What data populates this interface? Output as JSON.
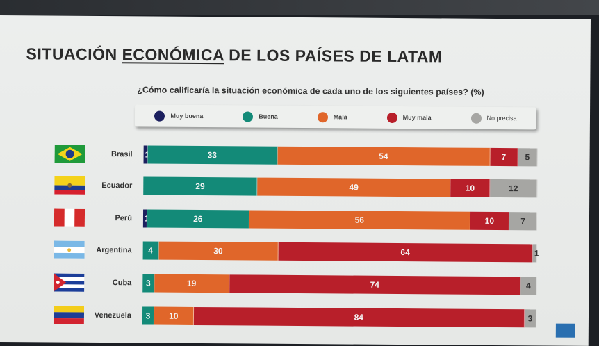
{
  "title_part1": "SITUACIÓN ",
  "title_part2": "ECONÓMICA",
  "title_part3": " DE LOS PAÍSES DE LATAM",
  "chart_data": {
    "type": "bar",
    "orientation": "horizontal-stacked-100",
    "title": "SITUACIÓN ECONÓMICA DE LOS PAÍSES DE LATAM",
    "subtitle": "¿Cómo calificaría la situación económica de cada uno de los siguientes países? (%)",
    "categories": [
      "Brasil",
      "Ecuador",
      "Perú",
      "Argentina",
      "Cuba",
      "Venezuela"
    ],
    "series": [
      {
        "name": "Muy buena",
        "color": "#1b1f5e",
        "values": [
          1,
          0,
          1,
          0,
          0,
          0
        ]
      },
      {
        "name": "Buena",
        "color": "#138a78",
        "values": [
          33,
          29,
          26,
          4,
          3,
          3
        ]
      },
      {
        "name": "Mala",
        "color": "#e0662a",
        "values": [
          54,
          49,
          56,
          30,
          19,
          10
        ]
      },
      {
        "name": "Muy mala",
        "color": "#b81f2a",
        "values": [
          7,
          10,
          10,
          64,
          74,
          84
        ]
      },
      {
        "name": "No precisa",
        "color": "#a6a6a3",
        "values": [
          5,
          12,
          7,
          1,
          4,
          3
        ]
      }
    ],
    "legend": "top"
  }
}
